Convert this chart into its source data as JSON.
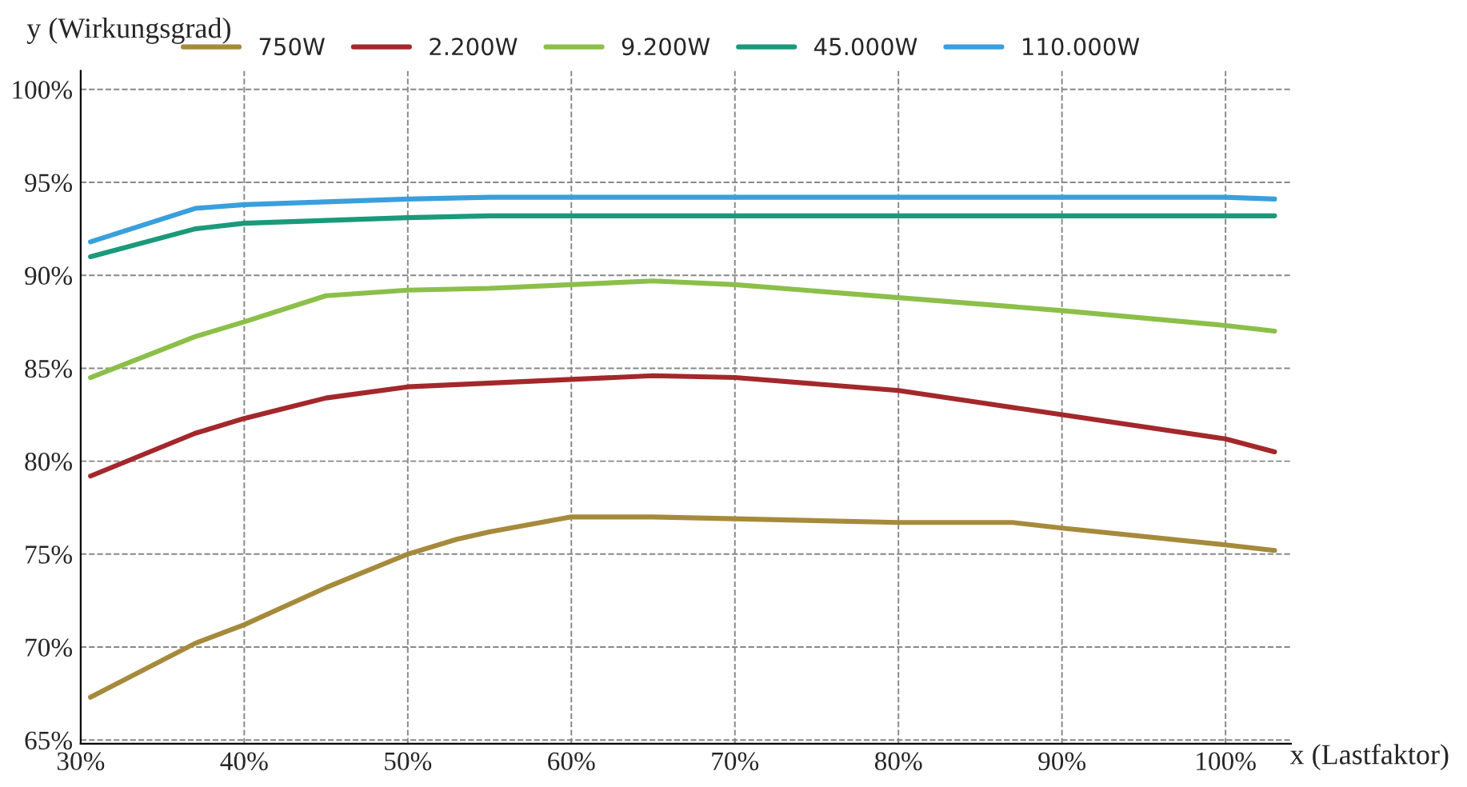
{
  "chart_data": {
    "type": "line",
    "xlabel": "x (Lastfaktor)",
    "ylabel": "y (Wirkungsgrad)",
    "xlim": [
      30,
      104
    ],
    "ylim": [
      64.8,
      101
    ],
    "xticks": [
      {
        "value": 30,
        "label": "30%"
      },
      {
        "value": 40,
        "label": "40%"
      },
      {
        "value": 50,
        "label": "50%"
      },
      {
        "value": 60,
        "label": "60%"
      },
      {
        "value": 70,
        "label": "70%"
      },
      {
        "value": 80,
        "label": "80%"
      },
      {
        "value": 90,
        "label": "90%"
      },
      {
        "value": 100,
        "label": "100%"
      }
    ],
    "yticks": [
      {
        "value": 65,
        "label": "65%"
      },
      {
        "value": 70,
        "label": "70%"
      },
      {
        "value": 75,
        "label": "75%"
      },
      {
        "value": 80,
        "label": "80%"
      },
      {
        "value": 85,
        "label": "85%"
      },
      {
        "value": 90,
        "label": "90%"
      },
      {
        "value": 95,
        "label": "95%"
      },
      {
        "value": 100,
        "label": "100%"
      }
    ],
    "grid": true,
    "legend": "top",
    "marker": "none",
    "line_style": "solid",
    "series": [
      {
        "name": "750W",
        "color": "#a68a3c",
        "x": [
          30.6,
          37,
          40,
          45,
          50,
          53,
          55,
          60,
          65,
          70,
          80,
          87,
          90,
          100,
          103
        ],
        "values": [
          67.3,
          70.2,
          71.2,
          73.2,
          75.0,
          75.8,
          76.2,
          77.0,
          77.0,
          76.9,
          76.7,
          76.7,
          76.4,
          75.5,
          75.2
        ]
      },
      {
        "name": "2.200W",
        "color": "#a3282b",
        "x": [
          30.6,
          37,
          40,
          45,
          50,
          60,
          65,
          70,
          80,
          90,
          100,
          103
        ],
        "values": [
          79.2,
          81.5,
          82.3,
          83.4,
          84.0,
          84.4,
          84.6,
          84.5,
          83.8,
          82.5,
          81.2,
          80.5
        ]
      },
      {
        "name": "9.200W",
        "color": "#8cbf4a",
        "x": [
          30.6,
          37,
          40,
          45,
          50,
          55,
          60,
          65,
          70,
          80,
          90,
          100,
          103
        ],
        "values": [
          84.5,
          86.7,
          87.5,
          88.9,
          89.2,
          89.3,
          89.5,
          89.7,
          89.5,
          88.8,
          88.1,
          87.3,
          87.0
        ]
      },
      {
        "name": "45.000W",
        "color": "#1a9a7a",
        "x": [
          30.6,
          37,
          40,
          50,
          55,
          70,
          90,
          103
        ],
        "values": [
          91.0,
          92.5,
          92.8,
          93.1,
          93.2,
          93.2,
          93.2,
          93.2
        ]
      },
      {
        "name": "110.000W",
        "color": "#3a9fdc",
        "x": [
          30.6,
          37,
          40,
          50,
          55,
          70,
          90,
          100,
          103
        ],
        "values": [
          91.8,
          93.6,
          93.8,
          94.1,
          94.2,
          94.2,
          94.2,
          94.2,
          94.1
        ]
      }
    ]
  }
}
